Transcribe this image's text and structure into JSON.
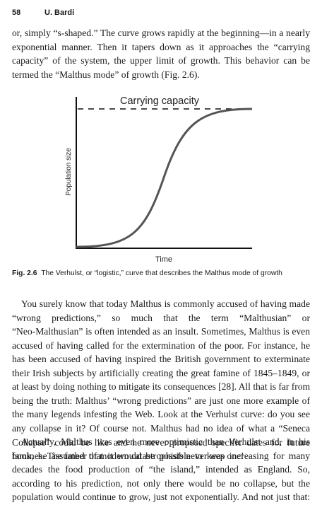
{
  "header": {
    "page_number": "58",
    "author": "U. Bardi"
  },
  "paragraphs": [
    {
      "lines": [
        "or, simply “s-shaped.” The curve grows rapidly at the beginning—in a nearly",
        "exponential manner. Then it tapers down as it approaches the “carrying",
        "capacity” of the system, the upper limit of growth. This behavior can be",
        "termed the “Malthus mode” of growth (Fig. 2.6)."
      ]
    },
    {
      "lines": [
        "You surely know that today Malthus is commonly accused of having made",
        "“wrong predictions,” so much that the term “Malthusian” or",
        "“Neo-Malthusian” is often intended as an insult. Sometimes, Malthus is even",
        "accused of having called for the extermination of the poor. For instance, he",
        "has been accused of having inspired the British government to exterminate",
        "their Irish subjects by artificially creating the great famine of 1845–1849, or",
        "at least by doing nothing to mitigate its consequences [28]. All that is far from",
        "being the truth: Malthus’ “wrong predictions” are just one more example of",
        "the many legends infesting the Web. Look at the Verhulst curve: do you see",
        "any collapse in it? Of course not. Malthus had no idea of what a “Seneca",
        "Collapse” could be like and he never proposed specific dates for future",
        "famines. The father of modern catastrophists never was one!"
      ]
    },
    {
      "lines": [
        "Actually, Malthus was even more optimistic than Verhulst and, in his",
        "book, he assumed that it would be possible to keep increasing for many",
        "decades the food production of “the island,” intended as England. So,",
        "according to his prediction, not only there would be no collapse, but the",
        "population would continue to grow, just not exponentially. And not just that:"
      ]
    }
  ],
  "figure": {
    "title": "Carrying capacity",
    "x_label": "Time",
    "y_label": "Population size",
    "caption_label": "Fig. 2.6",
    "caption": "The Verhulst, or “logistic,” curve that describes the Malthus mode of growth"
  }
}
